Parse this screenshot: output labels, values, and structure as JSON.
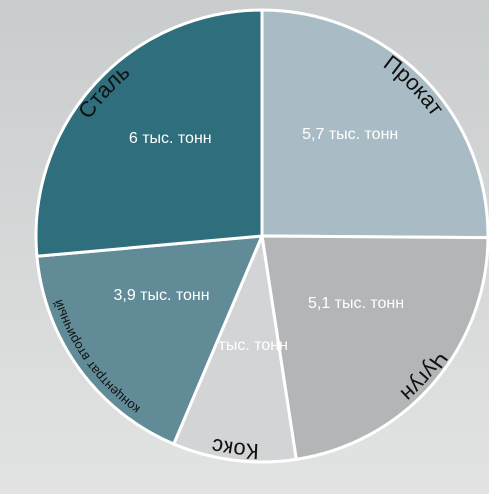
{
  "chart_data": {
    "type": "pie",
    "categories": [
      "Прокат",
      "Чугун",
      "Кокс",
      "концентрат вторичный",
      "Сталь"
    ],
    "values": [
      5.7,
      5.1,
      2,
      3.9,
      6
    ],
    "value_labels": [
      "5,7 тыс. тонн",
      "5,1 тыс. тонн",
      "2 тыс. тонн",
      "3,9 тыс. тонн",
      "6 тыс. тонн"
    ],
    "colors": [
      "#a9bcc5",
      "#b4b5b7",
      "#d3d4d5",
      "#628b98",
      "#2f6f7d"
    ]
  }
}
